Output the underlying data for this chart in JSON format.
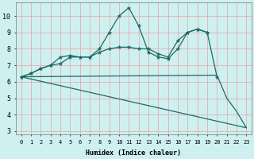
{
  "xlabel": "Humidex (Indice chaleur)",
  "bg_color": "#cff0f0",
  "grid_color": "#e8a0a0",
  "line_color": "#1a6b60",
  "xlim": [
    -0.5,
    23.5
  ],
  "ylim": [
    2.8,
    10.8
  ],
  "xticks": [
    0,
    1,
    2,
    3,
    4,
    5,
    6,
    7,
    8,
    9,
    10,
    11,
    12,
    13,
    14,
    15,
    16,
    17,
    18,
    19,
    20,
    21,
    22,
    23
  ],
  "yticks": [
    3,
    4,
    5,
    6,
    7,
    8,
    9,
    10
  ],
  "lines_with_markers": [
    {
      "x": [
        0,
        1,
        2,
        3,
        4,
        5,
        6,
        7,
        8,
        9,
        10,
        11,
        12,
        13,
        14,
        15,
        16,
        17,
        18,
        19,
        20
      ],
      "y": [
        6.3,
        6.5,
        6.8,
        7.0,
        7.5,
        7.6,
        7.5,
        7.5,
        8.0,
        9.0,
        10.0,
        10.5,
        9.4,
        7.8,
        7.5,
        7.4,
        8.0,
        9.0,
        9.2,
        9.0,
        6.3
      ]
    },
    {
      "x": [
        0,
        1,
        2,
        3,
        4,
        5,
        6,
        7,
        8,
        9,
        10,
        11,
        12,
        13,
        14,
        15,
        16,
        17,
        18,
        19
      ],
      "y": [
        6.3,
        6.5,
        6.8,
        7.0,
        7.1,
        7.5,
        7.5,
        7.5,
        7.8,
        8.0,
        8.1,
        8.1,
        8.0,
        8.0,
        7.7,
        7.5,
        8.5,
        9.0,
        9.2,
        9.0
      ]
    }
  ],
  "lines_no_markers": [
    {
      "x": [
        0,
        20,
        21,
        22,
        23
      ],
      "y": [
        6.3,
        6.4,
        5.0,
        4.2,
        3.2
      ]
    },
    {
      "x": [
        0,
        23
      ],
      "y": [
        6.3,
        3.2
      ]
    }
  ]
}
